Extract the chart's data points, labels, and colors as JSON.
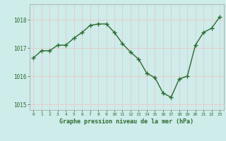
{
  "x": [
    0,
    1,
    2,
    3,
    4,
    5,
    6,
    7,
    8,
    9,
    10,
    11,
    12,
    13,
    14,
    15,
    16,
    17,
    18,
    19,
    20,
    21,
    22,
    23
  ],
  "y": [
    1016.65,
    1016.9,
    1016.9,
    1017.1,
    1017.1,
    1017.35,
    1017.55,
    1017.8,
    1017.85,
    1017.85,
    1017.55,
    1017.15,
    1016.85,
    1016.6,
    1016.1,
    1015.95,
    1015.4,
    1015.25,
    1015.9,
    1016.0,
    1017.1,
    1017.55,
    1017.7,
    1018.1
  ],
  "line_color": "#2d6a2d",
  "marker_color": "#2d6a2d",
  "bg_color": "#ceecea",
  "grid_color": "#e8c8c8",
  "xlabel": "Graphe pression niveau de la mer (hPa)",
  "xlabel_color": "#2d6a2d",
  "tick_color": "#2d6a2d",
  "spine_color": "#a0a0a0",
  "ylim": [
    1014.8,
    1018.55
  ],
  "yticks": [
    1015,
    1016,
    1017,
    1018
  ],
  "xticks": [
    0,
    1,
    2,
    3,
    4,
    5,
    6,
    7,
    8,
    9,
    10,
    11,
    12,
    13,
    14,
    15,
    16,
    17,
    18,
    19,
    20,
    21,
    22,
    23
  ],
  "marker_size": 2.5,
  "line_width": 1.0
}
